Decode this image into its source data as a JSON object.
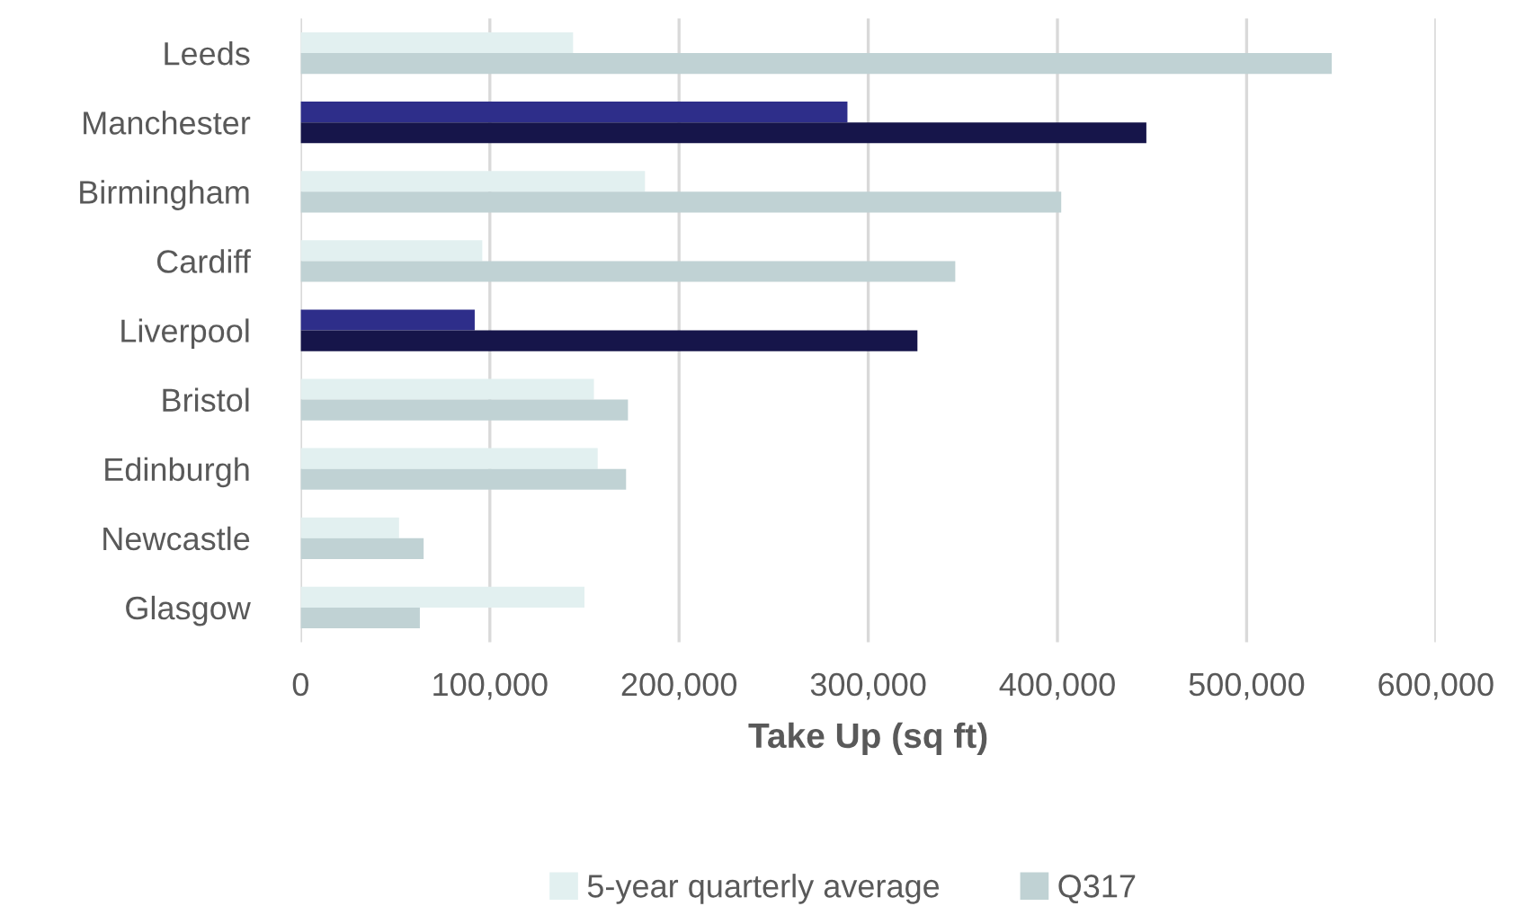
{
  "chart_data": {
    "type": "bar",
    "orientation": "horizontal",
    "xlabel": "Take Up (sq ft)",
    "categories": [
      "Leeds",
      "Manchester",
      "Birmingham",
      "Cardiff",
      "Liverpool",
      "Bristol",
      "Edinburgh",
      "Newcastle",
      "Glasgow"
    ],
    "series": [
      {
        "name": "5-year quarterly average",
        "color": "#e2f0f0",
        "colors": [
          "#e2f0f0",
          "#2e2e8a",
          "#e2f0f0",
          "#e2f0f0",
          "#2e2e8a",
          "#e2f0f0",
          "#e2f0f0",
          "#e2f0f0",
          "#e2f0f0"
        ],
        "values": [
          144000,
          289000,
          182000,
          96000,
          92000,
          155000,
          157000,
          52000,
          150000
        ]
      },
      {
        "name": "Q317",
        "color": "#c0d2d4",
        "colors": [
          "#c0d2d4",
          "#16154a",
          "#c0d2d4",
          "#c0d2d4",
          "#16154a",
          "#c0d2d4",
          "#c0d2d4",
          "#c0d2d4",
          "#c0d2d4"
        ],
        "values": [
          545000,
          447000,
          402000,
          346000,
          326000,
          173000,
          172000,
          65000,
          63000
        ]
      }
    ],
    "xlim": [
      0,
      600000
    ],
    "xticks": [
      {
        "value": 0,
        "label": "0"
      },
      {
        "value": 100000,
        "label": "100,000"
      },
      {
        "value": 200000,
        "label": "200,000"
      },
      {
        "value": 300000,
        "label": "300,000"
      },
      {
        "value": 400000,
        "label": "400,000"
      },
      {
        "value": 500000,
        "label": "500,000"
      },
      {
        "value": 600000,
        "label": "600,000"
      }
    ],
    "grid": "x",
    "legend": "bottom"
  }
}
